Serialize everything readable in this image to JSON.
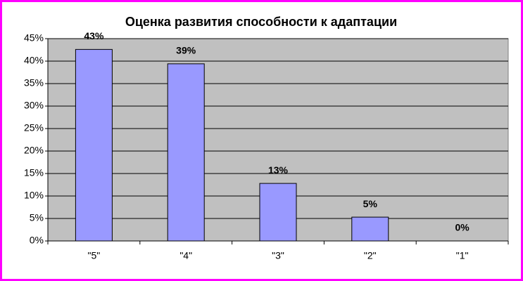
{
  "chart_data": {
    "type": "bar",
    "title": "Оценка развития способности к адаптации",
    "categories": [
      "\"5\"",
      "\"4\"",
      "\"3\"",
      "\"2\"",
      "\"1\""
    ],
    "values": [
      42.6,
      39.4,
      12.8,
      5.3,
      0
    ],
    "value_labels": [
      "43%",
      "39%",
      "13%",
      "5%",
      "0%"
    ],
    "color": "#9999ff",
    "ylim": [
      0,
      45
    ],
    "yticks": [
      {
        "value": 0,
        "label": "0%"
      },
      {
        "value": 5,
        "label": "5%"
      },
      {
        "value": 10,
        "label": "10%"
      },
      {
        "value": 15,
        "label": "15%"
      },
      {
        "value": 20,
        "label": "20%"
      },
      {
        "value": 25,
        "label": "25%"
      },
      {
        "value": 30,
        "label": "30%"
      },
      {
        "value": 35,
        "label": "35%"
      },
      {
        "value": 40,
        "label": "40%"
      },
      {
        "value": 45,
        "label": "45%"
      }
    ],
    "grid": true
  }
}
